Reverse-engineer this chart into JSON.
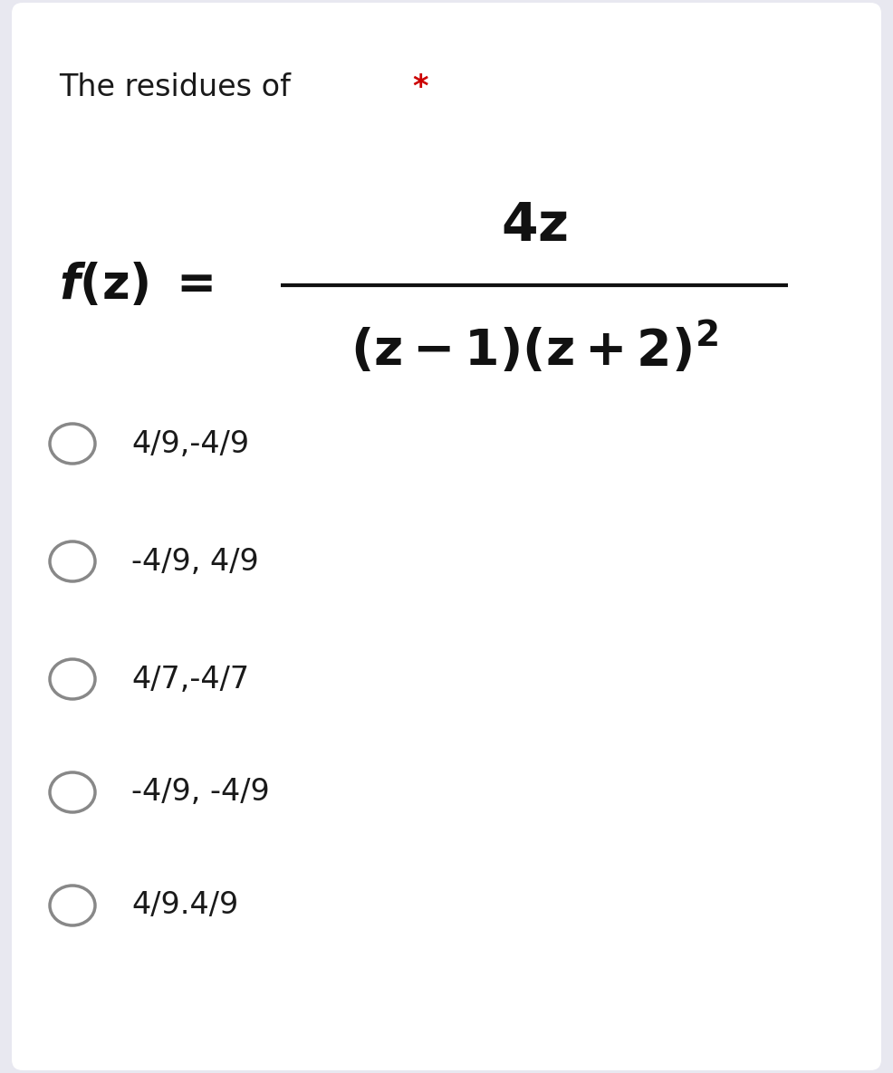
{
  "background_color": "#e8e8f0",
  "card_color": "#ffffff",
  "title_text": "The residues of ",
  "asterisk": "*",
  "asterisk_color": "#cc0000",
  "options": [
    "4/9,-4/9",
    "-4/9, 4/9",
    "4/7,-4/7",
    "-4/9, -4/9",
    "4/9.4/9"
  ],
  "title_fontsize": 24,
  "option_fontsize": 24,
  "circle_color": "#888888",
  "text_color": "#1a1a1a",
  "formula_color": "#111111"
}
